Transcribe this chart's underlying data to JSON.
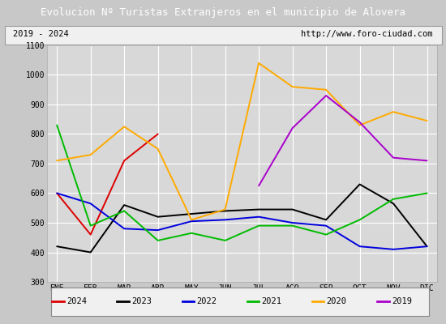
{
  "title": "Evolucion Nº Turistas Extranjeros en el municipio de Alovera",
  "subtitle_left": "2019 - 2024",
  "subtitle_right": "http://www.foro-ciudad.com",
  "title_bg_color": "#4e7bc4",
  "title_text_color": "#ffffff",
  "months": [
    "ENE",
    "FEB",
    "MAR",
    "ABR",
    "MAY",
    "JUN",
    "JUL",
    "AGO",
    "SEP",
    "OCT",
    "NOV",
    "DIC"
  ],
  "ylim": [
    300,
    1100
  ],
  "yticks": [
    300,
    400,
    500,
    600,
    700,
    800,
    900,
    1000,
    1100
  ],
  "series": {
    "2024": {
      "color": "#dd0000",
      "values": [
        600,
        460,
        710,
        800,
        null,
        null,
        null,
        null,
        null,
        null,
        null,
        null
      ]
    },
    "2023": {
      "color": "#000000",
      "values": [
        420,
        400,
        560,
        520,
        530,
        540,
        545,
        545,
        510,
        630,
        565,
        420
      ]
    },
    "2022": {
      "color": "#0000dd",
      "values": [
        600,
        565,
        480,
        475,
        505,
        510,
        520,
        500,
        490,
        420,
        410,
        420
      ]
    },
    "2021": {
      "color": "#00bb00",
      "values": [
        830,
        490,
        540,
        440,
        465,
        440,
        490,
        490,
        460,
        510,
        580,
        600
      ]
    },
    "2020": {
      "color": "#ffaa00",
      "values": [
        710,
        730,
        825,
        750,
        510,
        545,
        1040,
        960,
        950,
        830,
        875,
        845
      ]
    },
    "2019": {
      "color": "#aa00cc",
      "values": [
        null,
        null,
        null,
        null,
        null,
        null,
        625,
        820,
        930,
        840,
        720,
        710
      ]
    }
  },
  "legend_order": [
    "2024",
    "2023",
    "2022",
    "2021",
    "2020",
    "2019"
  ],
  "outer_bg": "#c8c8c8",
  "plot_bg_color": "#d8d8d8",
  "subtitle_bg": "#f0f0f0",
  "grid_color": "#ffffff",
  "font_family": "monospace"
}
